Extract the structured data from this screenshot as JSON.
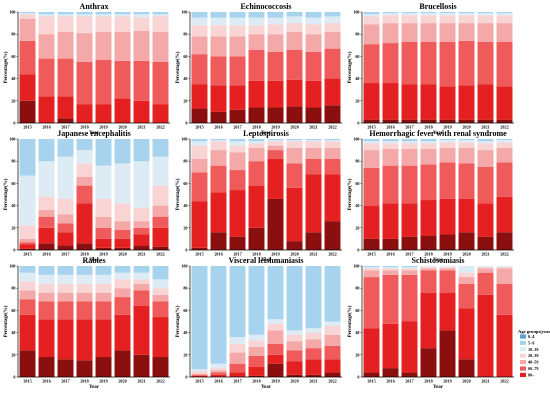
{
  "colors": [
    "#3d6fa8",
    "#5fa0d2",
    "#a8d3ef",
    "#dcebf4",
    "#f8d4d4",
    "#f4a8a8",
    "#ef5a5a",
    "#e52020",
    "#8b0f0f"
  ],
  "legend": {
    "title": "Age groups(years)",
    "items": [
      "0–4",
      "5–9",
      "10–19",
      "20–39",
      "40–59",
      "60–79",
      "80–"
    ]
  },
  "chart_data": [
    {
      "type": "bar",
      "title": "Anthrax",
      "xlabel": "Year",
      "ylabel": "Percentage(%)",
      "ylim": [
        0,
        100
      ],
      "categories": [
        "2015",
        "2016",
        "2017",
        "2018",
        "2019",
        "2020",
        "2021",
        "2022"
      ],
      "stack_order": "80–, 60–79, 40–59, 20–39, 10–19, 5–9, 0–4 (bottom to top)",
      "series": [
        {
          "name": "80–",
          "values": [
            20,
            0,
            4,
            0,
            0,
            0,
            0,
            0
          ]
        },
        {
          "name": "60–79",
          "values": [
            24,
            24,
            20,
            17,
            17,
            22,
            20,
            17
          ]
        },
        {
          "name": "40–59",
          "values": [
            30,
            34,
            34,
            38,
            40,
            34,
            36,
            38
          ]
        },
        {
          "name": "20–39",
          "values": [
            20,
            22,
            24,
            26,
            25,
            26,
            27,
            27
          ]
        },
        {
          "name": "10–19",
          "values": [
            4,
            16,
            14,
            15,
            14,
            14,
            12,
            14
          ]
        },
        {
          "name": "5–9",
          "values": [
            1,
            2,
            2,
            2,
            2,
            2,
            3,
            2
          ]
        },
        {
          "name": "0–4",
          "values": [
            1,
            2,
            2,
            2,
            2,
            2,
            2,
            2
          ]
        }
      ]
    },
    {
      "type": "bar",
      "title": "Echinococcosis",
      "xlabel": "Year",
      "ylabel": "Percentage(%)",
      "ylim": [
        0,
        100
      ],
      "categories": [
        "2015",
        "2016",
        "2017",
        "2018",
        "2019",
        "2020",
        "2021",
        "2022"
      ],
      "series": [
        {
          "name": "80–",
          "values": [
            13,
            10,
            12,
            14,
            14,
            15,
            14,
            16
          ]
        },
        {
          "name": "60–79",
          "values": [
            22,
            24,
            22,
            24,
            24,
            24,
            24,
            24
          ]
        },
        {
          "name": "40–59",
          "values": [
            27,
            26,
            26,
            28,
            26,
            27,
            26,
            27
          ]
        },
        {
          "name": "20–39",
          "values": [
            16,
            18,
            18,
            14,
            16,
            16,
            16,
            15
          ]
        },
        {
          "name": "10–19",
          "values": [
            10,
            10,
            10,
            8,
            9,
            8,
            9,
            8
          ]
        },
        {
          "name": "5–9",
          "values": [
            7,
            7,
            7,
            7,
            6,
            6,
            6,
            6
          ]
        },
        {
          "name": "0–4",
          "values": [
            5,
            5,
            5,
            5,
            5,
            4,
            5,
            4
          ]
        }
      ]
    },
    {
      "type": "bar",
      "title": "Brucellosis",
      "xlabel": "Year",
      "ylabel": "Percentage(%)",
      "ylim": [
        0,
        100
      ],
      "categories": [
        "2015",
        "2016",
        "2017",
        "2018",
        "2019",
        "2020",
        "2021",
        "2022"
      ],
      "series": [
        {
          "name": "80–",
          "values": [
            3,
            3,
            3,
            3,
            3,
            3,
            3,
            3
          ]
        },
        {
          "name": "60–79",
          "values": [
            33,
            33,
            32,
            32,
            30,
            31,
            32,
            30
          ]
        },
        {
          "name": "40–59",
          "values": [
            35,
            36,
            38,
            38,
            40,
            40,
            38,
            40
          ]
        },
        {
          "name": "20–39",
          "values": [
            18,
            18,
            17,
            17,
            17,
            16,
            17,
            17
          ]
        },
        {
          "name": "10–19",
          "values": [
            7,
            7,
            7,
            7,
            7,
            7,
            7,
            7
          ]
        },
        {
          "name": "5–9",
          "values": [
            2,
            2,
            2,
            2,
            2,
            2,
            2,
            2
          ]
        },
        {
          "name": "0–4",
          "values": [
            2,
            1,
            1,
            1,
            1,
            1,
            1,
            1
          ]
        }
      ]
    },
    {
      "type": "bar",
      "title": "Japanese encephalitis",
      "xlabel": "Year",
      "ylabel": "Percentage(%)",
      "ylim": [
        0,
        100
      ],
      "categories": [
        "2015",
        "2016",
        "2017",
        "2018",
        "2019",
        "2020",
        "2021",
        "2022"
      ],
      "series": [
        {
          "name": "80–",
          "values": [
            1,
            6,
            4,
            6,
            2,
            2,
            4,
            3
          ]
        },
        {
          "name": "60–79",
          "values": [
            4,
            14,
            12,
            36,
            8,
            8,
            10,
            17
          ]
        },
        {
          "name": "40–59",
          "values": [
            2,
            10,
            8,
            16,
            10,
            8,
            6,
            10
          ]
        },
        {
          "name": "20–39",
          "values": [
            3,
            6,
            8,
            8,
            10,
            8,
            6,
            10
          ]
        },
        {
          "name": "10–19",
          "values": [
            12,
            12,
            14,
            12,
            16,
            16,
            12,
            18
          ]
        },
        {
          "name": "5–9",
          "values": [
            45,
            32,
            38,
            12,
            30,
            36,
            42,
            26
          ]
        },
        {
          "name": "0–4",
          "values": [
            33,
            20,
            16,
            10,
            24,
            22,
            20,
            16
          ]
        }
      ]
    },
    {
      "type": "bar",
      "title": "Leptospirosis",
      "xlabel": "Year",
      "ylabel": "Percentage(%)",
      "ylim": [
        0,
        100
      ],
      "categories": [
        "2015",
        "2016",
        "2017",
        "2018",
        "2019",
        "2020",
        "2021",
        "2022"
      ],
      "series": [
        {
          "name": "80–",
          "values": [
            2,
            16,
            12,
            20,
            46,
            8,
            16,
            26
          ]
        },
        {
          "name": "60–79",
          "values": [
            42,
            36,
            42,
            38,
            36,
            48,
            52,
            42
          ]
        },
        {
          "name": "40–59",
          "values": [
            26,
            24,
            18,
            22,
            8,
            22,
            14,
            14
          ]
        },
        {
          "name": "20–39",
          "values": [
            12,
            14,
            16,
            12,
            4,
            14,
            10,
            10
          ]
        },
        {
          "name": "10–19",
          "values": [
            12,
            8,
            6,
            4,
            4,
            6,
            6,
            6
          ]
        },
        {
          "name": "5–9",
          "values": [
            4,
            1,
            4,
            2,
            1,
            1,
            1,
            1
          ]
        },
        {
          "name": "0–4",
          "values": [
            2,
            1,
            2,
            2,
            1,
            1,
            1,
            1
          ]
        }
      ]
    },
    {
      "type": "bar",
      "title": "Hemorrhagic fever with renal syndrome",
      "xlabel": "Year",
      "ylabel": "Percentage(%)",
      "ylim": [
        0,
        100
      ],
      "categories": [
        "2015",
        "2016",
        "2017",
        "2018",
        "2019",
        "2020",
        "2021",
        "2022"
      ],
      "series": [
        {
          "name": "80–",
          "values": [
            10,
            10,
            12,
            13,
            14,
            16,
            12,
            16
          ]
        },
        {
          "name": "60–79",
          "values": [
            30,
            32,
            30,
            32,
            32,
            30,
            30,
            32
          ]
        },
        {
          "name": "40–59",
          "values": [
            34,
            34,
            34,
            32,
            33,
            32,
            33,
            31
          ]
        },
        {
          "name": "20–39",
          "values": [
            16,
            15,
            15,
            14,
            13,
            14,
            15,
            13
          ]
        },
        {
          "name": "10–19",
          "values": [
            6,
            5,
            5,
            5,
            5,
            5,
            6,
            5
          ]
        },
        {
          "name": "5–9",
          "values": [
            2,
            2,
            2,
            2,
            2,
            2,
            2,
            2
          ]
        },
        {
          "name": "0–4",
          "values": [
            2,
            2,
            2,
            2,
            1,
            1,
            2,
            1
          ]
        }
      ]
    },
    {
      "type": "bar",
      "title": "Rabies",
      "xlabel": "Year",
      "ylabel": "Percentage(%)",
      "ylim": [
        0,
        100
      ],
      "categories": [
        "2015",
        "2016",
        "2017",
        "2018",
        "2019",
        "2020",
        "2021",
        "2022"
      ],
      "series": [
        {
          "name": "80–",
          "values": [
            24,
            18,
            16,
            15,
            18,
            24,
            20,
            18
          ]
        },
        {
          "name": "60–79",
          "values": [
            32,
            34,
            36,
            37,
            34,
            32,
            44,
            36
          ]
        },
        {
          "name": "40–59",
          "values": [
            14,
            16,
            16,
            16,
            16,
            16,
            14,
            14
          ]
        },
        {
          "name": "20–39",
          "values": [
            8,
            8,
            8,
            8,
            8,
            8,
            6,
            6
          ]
        },
        {
          "name": "10–19",
          "values": [
            8,
            8,
            8,
            8,
            8,
            8,
            4,
            6
          ]
        },
        {
          "name": "5–9",
          "values": [
            8,
            8,
            8,
            8,
            8,
            6,
            6,
            8
          ]
        },
        {
          "name": "0–4",
          "values": [
            6,
            8,
            8,
            8,
            8,
            6,
            6,
            12
          ]
        }
      ]
    },
    {
      "type": "bar",
      "title": "Visceral leishmaniasis",
      "xlabel": "Year",
      "ylabel": "Percentage(%)",
      "ylim": [
        0,
        100
      ],
      "categories": [
        "2015",
        "2016",
        "2017",
        "2018",
        "2019",
        "2020",
        "2021",
        "2022"
      ],
      "series": [
        {
          "name": "80–",
          "values": [
            0,
            0,
            0,
            1,
            12,
            2,
            2,
            4
          ]
        },
        {
          "name": "60–79",
          "values": [
            1,
            2,
            4,
            8,
            8,
            12,
            14,
            12
          ]
        },
        {
          "name": "40–59",
          "values": [
            1,
            2,
            8,
            10,
            10,
            10,
            10,
            12
          ]
        },
        {
          "name": "20–39",
          "values": [
            1,
            2,
            10,
            8,
            12,
            8,
            8,
            10
          ]
        },
        {
          "name": "10–19",
          "values": [
            2,
            2,
            8,
            6,
            6,
            6,
            6,
            8
          ]
        },
        {
          "name": "5–9",
          "values": [
            2,
            4,
            6,
            5,
            4,
            4,
            4,
            4
          ]
        },
        {
          "name": "0–4",
          "values": [
            93,
            88,
            64,
            62,
            48,
            58,
            56,
            50
          ]
        }
      ]
    },
    {
      "type": "bar",
      "title": "Schistosomiasis",
      "xlabel": "Year",
      "ylabel": "Percentage(%)",
      "ylim": [
        0,
        100
      ],
      "categories": [
        "2015",
        "2016",
        "2017",
        "2018",
        "2019",
        "2020",
        "2021",
        "2022"
      ],
      "series": [
        {
          "name": "80–",
          "values": [
            4,
            8,
            4,
            26,
            42,
            16,
            0,
            0
          ]
        },
        {
          "name": "60–79",
          "values": [
            40,
            40,
            46,
            50,
            34,
            46,
            74,
            56
          ]
        },
        {
          "name": "40–59",
          "values": [
            46,
            44,
            42,
            20,
            20,
            22,
            20,
            28
          ]
        },
        {
          "name": "20–39",
          "values": [
            6,
            4,
            4,
            2,
            2,
            6,
            4,
            14
          ]
        },
        {
          "name": "10–19",
          "values": [
            2,
            2,
            2,
            1,
            1,
            4,
            1,
            1
          ]
        },
        {
          "name": "5–9",
          "values": [
            1,
            1,
            1,
            1,
            1,
            6,
            1,
            1
          ]
        },
        {
          "name": "0–4",
          "values": [
            1,
            1,
            1,
            0,
            0,
            0,
            0,
            0
          ]
        }
      ]
    }
  ]
}
